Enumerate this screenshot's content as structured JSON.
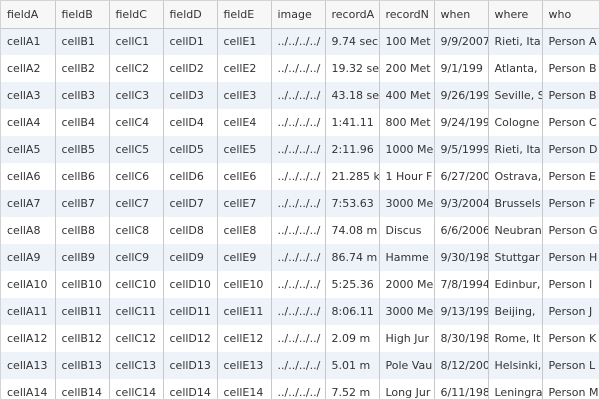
{
  "columns": [
    "fieldA",
    "fieldB",
    "fieldC",
    "fieldD",
    "fieldE",
    "image",
    "recordA",
    "recordN",
    "when",
    "where",
    "who"
  ],
  "rows": [
    [
      "cellA1",
      "cellB1",
      "cellC1",
      "cellD1",
      "cellE1",
      "../../../../",
      "9.74 sec",
      "100 Met",
      "9/9/2007",
      "Rieti, Ita",
      "Person A"
    ],
    [
      "cellA2",
      "cellB2",
      "cellC2",
      "cellD2",
      "cellE2",
      "../../../../",
      "19.32 se",
      "200 Met",
      "9/1/199",
      "Atlanta,",
      "Person B"
    ],
    [
      "cellA3",
      "cellB3",
      "cellC3",
      "cellD3",
      "cellE3",
      "../../../../",
      "43.18 se",
      "400 Met",
      "9/26/199",
      "Seville, S",
      "Person B"
    ],
    [
      "cellA4",
      "cellB4",
      "cellC4",
      "cellD4",
      "cellE4",
      "../../../../",
      "1:41.11",
      "800 Met",
      "9/24/199",
      "Cologne",
      "Person C"
    ],
    [
      "cellA5",
      "cellB5",
      "cellC5",
      "cellD5",
      "cellE5",
      "../../../../",
      "2:11.96",
      "1000 Me",
      "9/5/1999",
      "Rieti, Ita",
      "Person D"
    ],
    [
      "cellA6",
      "cellB6",
      "cellC6",
      "cellD6",
      "cellE6",
      "../../../../",
      "21.285 k",
      "1 Hour F",
      "6/27/200",
      "Ostrava,",
      "Person E"
    ],
    [
      "cellA7",
      "cellB7",
      "cellC7",
      "cellD7",
      "cellE7",
      "../../../../",
      "7:53.63",
      "3000 Me",
      "9/3/2004",
      "Brussels",
      "Person F"
    ],
    [
      "cellA8",
      "cellB8",
      "cellC8",
      "cellD8",
      "cellE8",
      "../../../../",
      "74.08 m",
      "Discus",
      "6/6/2006",
      "Neubran",
      "Person G"
    ],
    [
      "cellA9",
      "cellB9",
      "cellC9",
      "cellD9",
      "cellE9",
      "../../../../",
      "86.74 m",
      "Hamme",
      "9/30/198",
      "Stuttgar",
      "Person H"
    ],
    [
      "cellA10",
      "cellB10",
      "cellC10",
      "cellD10",
      "cellE10",
      "../../../../",
      "5:25.36",
      "2000 Me",
      "7/8/1994",
      "Edinbur,",
      "Person I"
    ],
    [
      "cellA11",
      "cellB11",
      "cellC11",
      "cellD11",
      "cellE11",
      "../../../../",
      "8:06.11",
      "3000 Me",
      "9/13/199",
      "Beijing,",
      "Person J"
    ],
    [
      "cellA12",
      "cellB12",
      "cellC12",
      "cellD12",
      "cellE12",
      "../../../../",
      "2.09 m",
      "High Jur",
      "8/30/198",
      "Rome, It",
      "Person K"
    ],
    [
      "cellA13",
      "cellB13",
      "cellC13",
      "cellD13",
      "cellE13",
      "../../../../",
      "5.01 m",
      "Pole Vau",
      "8/12/200",
      "Helsinki,",
      "Person L"
    ],
    [
      "cellA14",
      "cellB14",
      "cellC14",
      "cellD14",
      "cellE14",
      "../../../../",
      "7.52 m",
      "Long Jur",
      "6/11/198",
      "Leningra",
      "Person M"
    ]
  ]
}
